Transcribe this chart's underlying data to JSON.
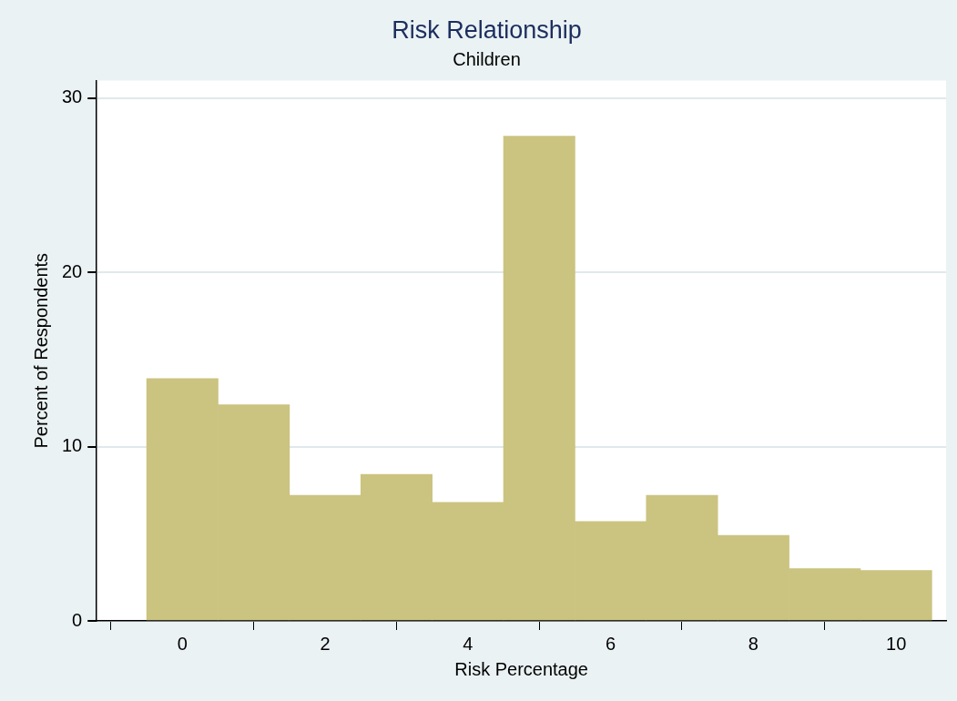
{
  "chart_data": {
    "type": "histogram",
    "title": "Risk Relationship",
    "subtitle": "Children",
    "xlabel": "Risk Percentage",
    "ylabel": "Percent of Respondents",
    "bins": [
      -0.5,
      0.5,
      1.5,
      2.5,
      3.5,
      4.5,
      5.5,
      6.5,
      7.5,
      8.5,
      9.5,
      10.5
    ],
    "values": [
      13.9,
      12.4,
      7.2,
      8.4,
      6.8,
      27.8,
      5.7,
      7.2,
      4.9,
      3.0,
      2.9
    ],
    "color": "#cbc380",
    "xlim": [
      -1.2,
      10.7
    ],
    "xticks": [
      0,
      2,
      4,
      6,
      8,
      10
    ],
    "ylim": [
      0,
      31
    ],
    "yticks": [
      0,
      10,
      20,
      30
    ],
    "grid": "y",
    "legend": false
  }
}
